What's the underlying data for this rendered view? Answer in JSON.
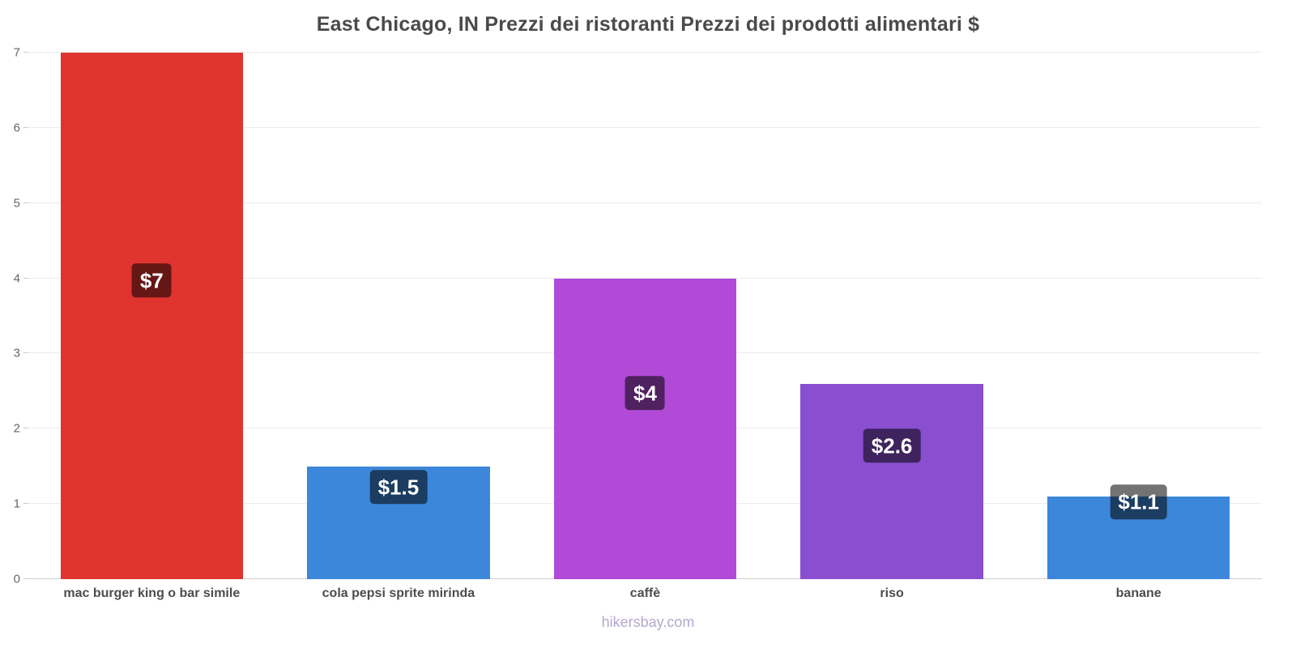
{
  "footer": "hikersbay.com",
  "chart_data": {
    "type": "bar",
    "title": "East Chicago, IN Prezzi dei ristoranti Prezzi dei prodotti alimentari $",
    "xlabel": "",
    "ylabel": "",
    "categories": [
      "mac burger king o bar simile",
      "cola pepsi sprite mirinda",
      "caffè",
      "riso",
      "banane"
    ],
    "values": [
      7,
      1.5,
      4,
      2.6,
      1.1
    ],
    "value_labels": [
      "$7",
      "$1.5",
      "$4",
      "$2.6",
      "$1.1"
    ],
    "currency": "$",
    "bar_colors": [
      "#e0342f",
      "#3c87da",
      "#b14ad6",
      "#8a4fd1",
      "#3c87da"
    ],
    "badge_color": "rgba(0,0,0,0.55)",
    "ylim": [
      0,
      7
    ],
    "yticks": [
      0,
      1,
      2,
      3,
      4,
      5,
      6,
      7
    ],
    "grid": true,
    "legend": "none"
  }
}
